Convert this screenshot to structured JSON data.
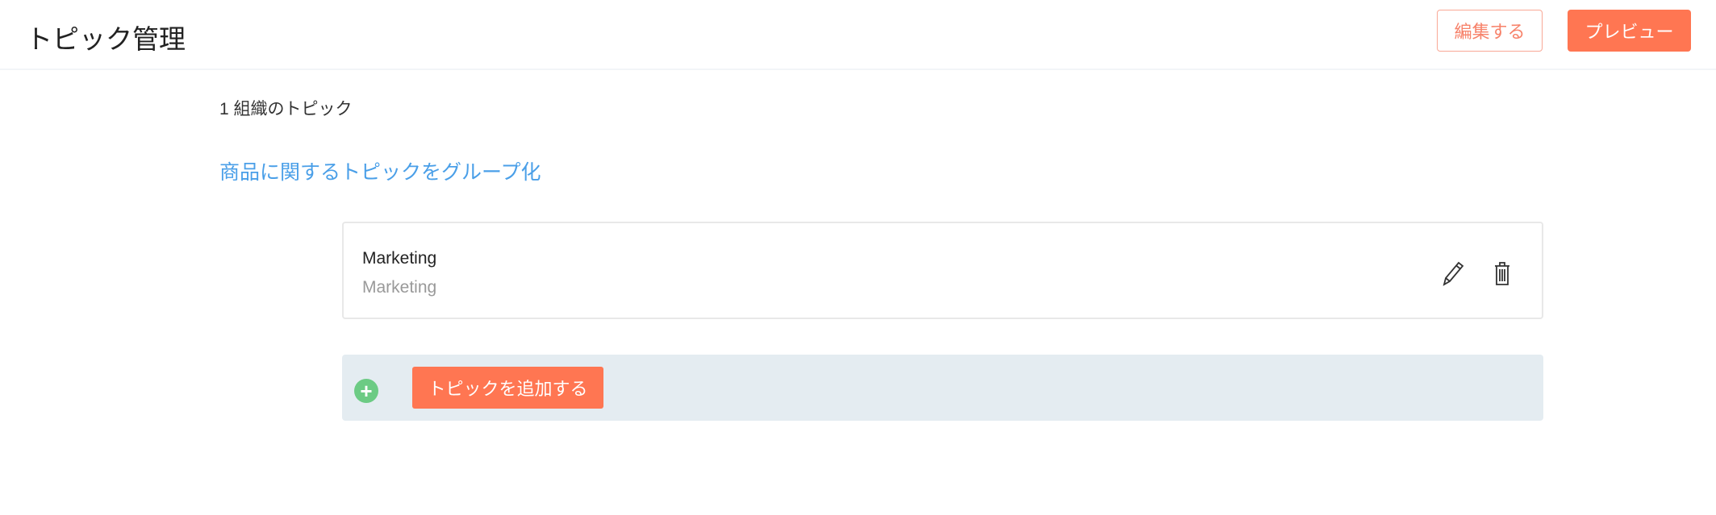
{
  "header": {
    "title": "トピック管理",
    "edit_label": "編集する",
    "preview_label": "プレビュー"
  },
  "main": {
    "topic_count": "1 組織のトピック",
    "group_link": "商品に関するトピックをグループ化",
    "topics": [
      {
        "name": "Marketing",
        "description": "Marketing",
        "actions": [
          "pencil-icon",
          "trash-icon"
        ]
      }
    ],
    "add_topic_label": "トピックを追加する"
  },
  "colors": {
    "accent": "#ff7652",
    "link": "#4a9fe8",
    "add_row_bg": "#e4ecf1",
    "plus": "#6ccb84"
  }
}
